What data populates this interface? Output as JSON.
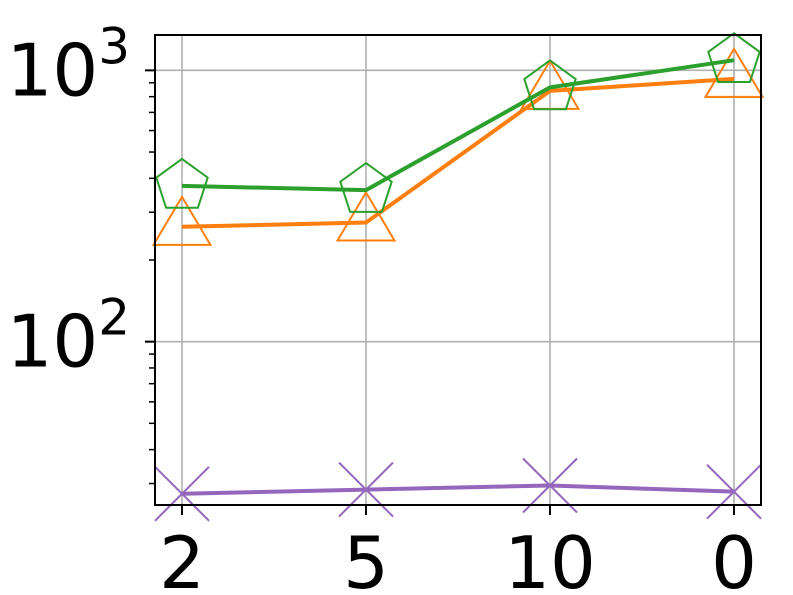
{
  "chart_data": {
    "type": "line",
    "title": "",
    "xlabel": "",
    "ylabel": "",
    "y_scale": "log",
    "ylim": [
      25,
      1350
    ],
    "grid": true,
    "legend": "none",
    "categories": [
      "2",
      "5",
      "10",
      "0"
    ],
    "y_tick_labels": [
      {
        "value": 100,
        "base": "10",
        "exp": "2"
      },
      {
        "value": 1000,
        "base": "10",
        "exp": "3"
      }
    ],
    "series": [
      {
        "color": "#ff7f0e",
        "marker": "triangle",
        "values": [
          265,
          275,
          840,
          930
        ]
      },
      {
        "color": "#2ca02c",
        "marker": "pentagon",
        "values": [
          375,
          362,
          865,
          1090
        ]
      },
      {
        "color": "#9467bd",
        "marker": "x",
        "values": [
          27.5,
          28.5,
          29.5,
          28.0
        ]
      }
    ]
  }
}
